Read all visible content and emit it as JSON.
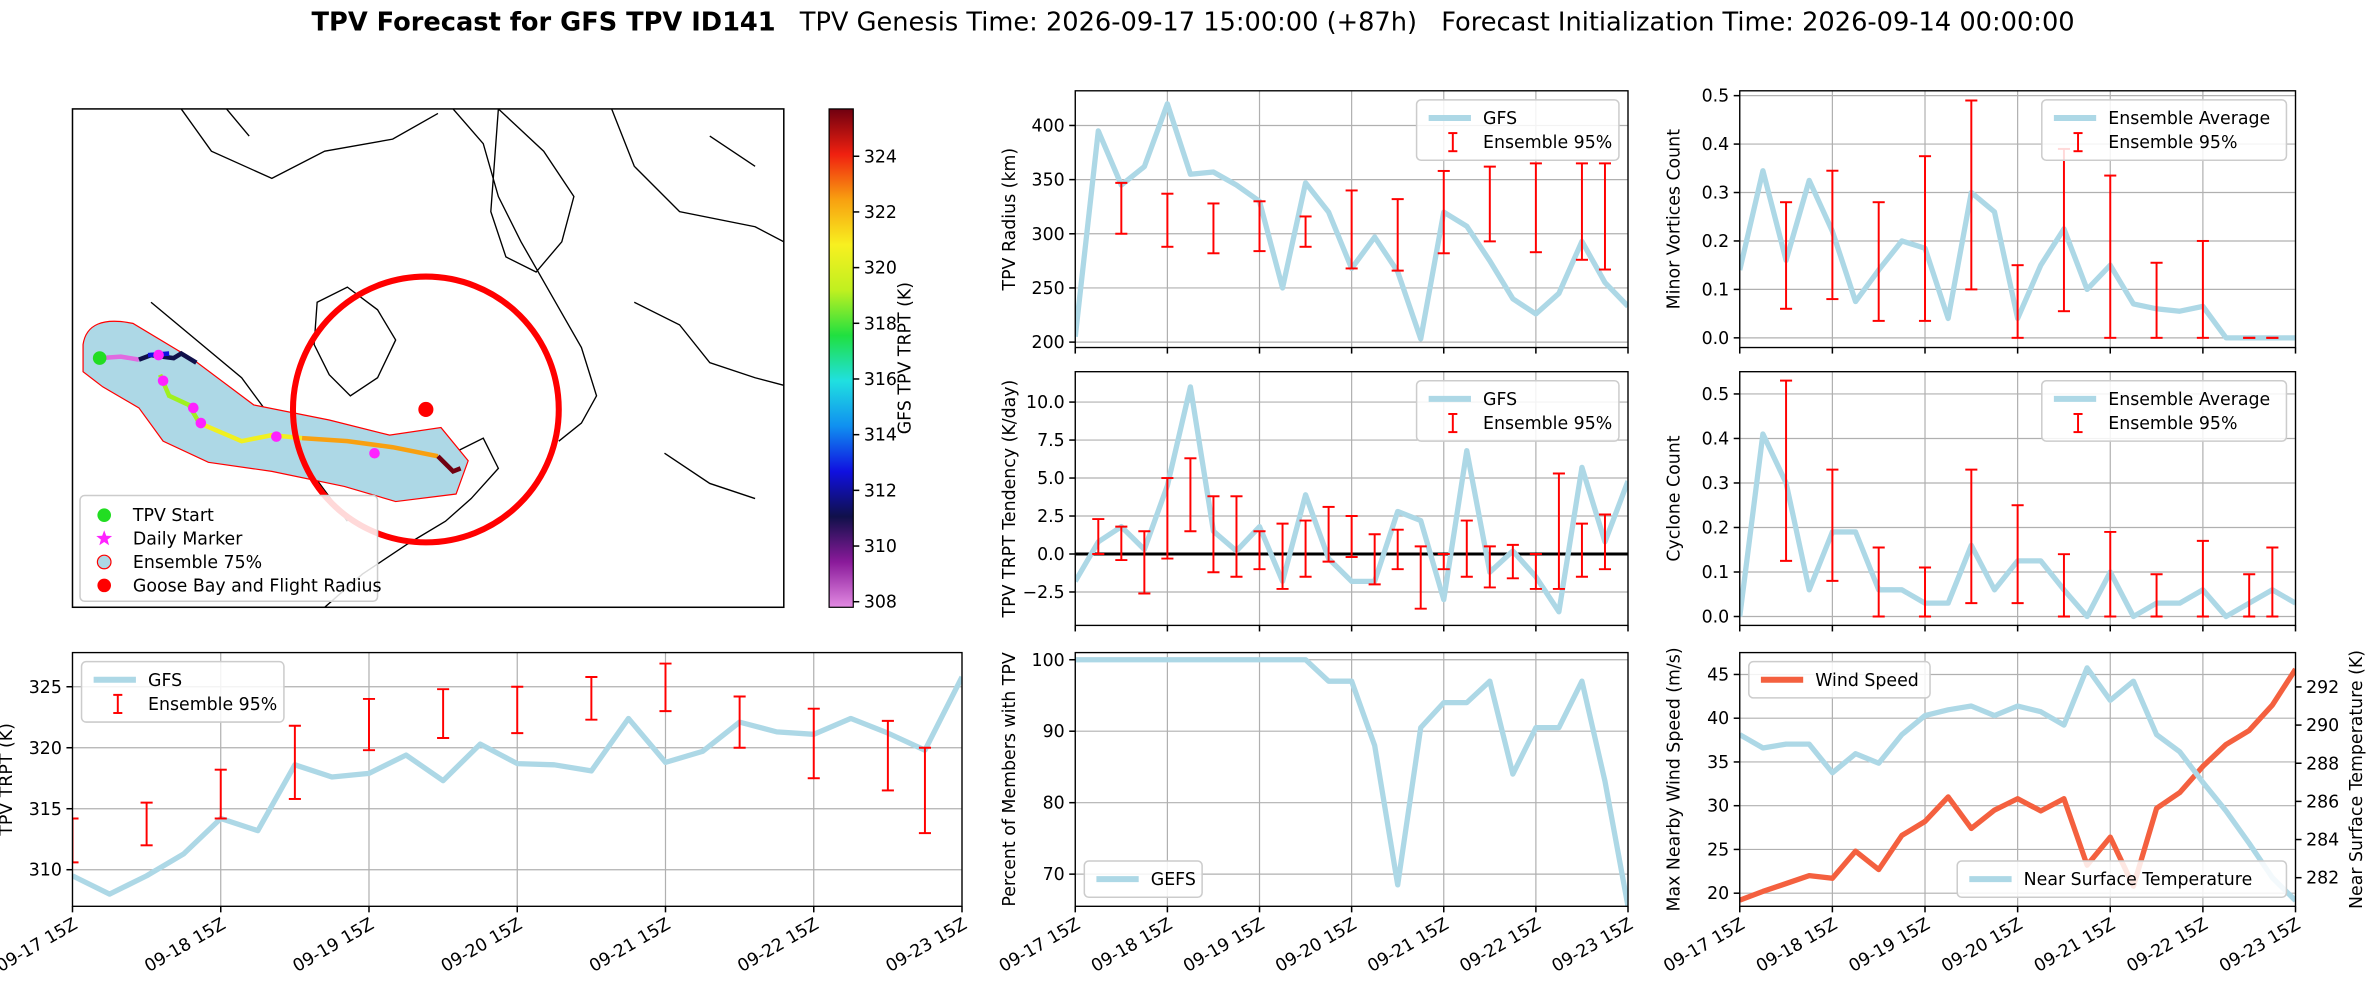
{
  "title": "TPV Forecast for GFS TPV ID141",
  "genesis": "TPV Genesis Time: 2026-09-17 15:00:00 (+87h)",
  "init": "Forecast Initialization Time: 2026-09-14 00:00:00",
  "chart_data": [
    {
      "type": "map",
      "colorbar_label": "GFS TPV TRPT (K)",
      "colorbar_lim": [
        307.8,
        325.7
      ],
      "colorbar_ticks": [
        308,
        310,
        312,
        314,
        316,
        318,
        320,
        322,
        324
      ],
      "colormap": [
        "#e28ae2",
        "#8a1a9a",
        "#10104a",
        "#1010e0",
        "#1090f0",
        "#20e0e0",
        "#20e040",
        "#c0f020",
        "#f8f020",
        "#f8a010",
        "#f02010",
        "#700010"
      ],
      "legend": [
        {
          "name": "TPV Start",
          "color": "#22dd22",
          "marker": "circle"
        },
        {
          "name": "Daily Marker",
          "color": "#ff22ff",
          "marker": "star"
        },
        {
          "name": "Ensemble 75%",
          "color": "#add8e6",
          "marker": "ring"
        },
        {
          "name": "Goose Bay and Flight Radius",
          "color": "#ff0000",
          "marker": "circle"
        }
      ]
    },
    {
      "type": "line",
      "ylabel": "TPV TRPT (K)",
      "categories": [
        "09-17 15Z",
        null,
        null,
        null,
        "09-18 15Z",
        null,
        null,
        null,
        "09-19 15Z",
        null,
        null,
        null,
        "09-20 15Z",
        null,
        null,
        null,
        "09-21 15Z",
        null,
        null,
        null,
        "09-22 15Z",
        null,
        null,
        null,
        "09-23 15Z"
      ],
      "ylim": [
        307,
        327.8
      ],
      "yticks": [
        310,
        315,
        320,
        325
      ],
      "grid": true,
      "legend": "upper left",
      "series": [
        {
          "name": "GFS",
          "color": "#add8e6",
          "values": [
            309.5,
            308,
            309.5,
            311.3,
            314.2,
            313.2,
            318.6,
            317.6,
            317.9,
            319.4,
            317.3,
            320.3,
            318.7,
            318.6,
            318.1,
            322.4,
            318.8,
            319.7,
            322.1,
            321.3,
            321.1,
            322.4,
            321.2,
            319.8,
            325.8
          ]
        },
        {
          "name": "Ensemble 95%",
          "type": "errorbar",
          "color": "#ff0000",
          "low": [
            310.6,
            null,
            312,
            null,
            314.2,
            null,
            315.8,
            null,
            319.8,
            null,
            320.8,
            null,
            321.2,
            null,
            322.3,
            null,
            323,
            null,
            320,
            null,
            317.5,
            null,
            316.5,
            313,
            null
          ],
          "high": [
            314.2,
            null,
            315.5,
            null,
            318.2,
            null,
            321.8,
            null,
            324,
            null,
            324.8,
            null,
            325,
            null,
            325.8,
            null,
            326.9,
            null,
            324.2,
            null,
            323.2,
            null,
            322.2,
            320,
            null
          ]
        }
      ]
    },
    {
      "type": "line",
      "ylabel": "TPV Radius (km)",
      "ylim": [
        195,
        432
      ],
      "yticks": [
        200,
        250,
        300,
        350,
        400
      ],
      "grid": true,
      "legend": "upper right",
      "series": [
        {
          "name": "GFS",
          "color": "#add8e6",
          "values": [
            205,
            395,
            345,
            362,
            420,
            355,
            357,
            345,
            330,
            250,
            347,
            320,
            268,
            297,
            265,
            203,
            320,
            307,
            275,
            240,
            226,
            245,
            293,
            255,
            233
          ]
        },
        {
          "name": "Ensemble 95%",
          "type": "errorbar",
          "color": "#ff0000",
          "low": [
            null,
            null,
            300,
            null,
            288,
            null,
            282,
            null,
            284,
            null,
            288,
            null,
            268,
            null,
            266,
            null,
            282,
            null,
            293,
            null,
            283,
            null,
            276,
            267,
            null
          ],
          "high": [
            null,
            null,
            347,
            null,
            337,
            null,
            328,
            null,
            330,
            null,
            316,
            null,
            340,
            null,
            332,
            null,
            358,
            null,
            362,
            null,
            365,
            null,
            365,
            365,
            null
          ]
        }
      ]
    },
    {
      "type": "line",
      "ylabel": "TPV TRPT Tendency (K/day)",
      "ylim": [
        -4.7,
        12
      ],
      "yticks": [
        {
          "value": -2.5,
          "label": "−2.5"
        },
        {
          "value": 0,
          "label": "0.0"
        },
        {
          "value": 2.5,
          "label": "2.5"
        },
        {
          "value": 5,
          "label": "5.0"
        },
        {
          "value": 7.5,
          "label": "7.5"
        },
        {
          "value": 10,
          "label": "10.0"
        }
      ],
      "grid": true,
      "legend": "upper right",
      "reference_line": 0,
      "series": [
        {
          "name": "GFS",
          "color": "#add8e6",
          "values": [
            -1.8,
            0.8,
            1.8,
            0.3,
            4.5,
            11,
            1.5,
            0.2,
            1.8,
            -1.8,
            3.9,
            -0.3,
            -1.8,
            -1.8,
            2.8,
            2.2,
            -3,
            6.8,
            -1.2,
            0.2,
            -1.5,
            -3.8,
            5.7,
            0.8,
            4.8
          ]
        },
        {
          "name": "Ensemble 95%",
          "type": "errorbar",
          "color": "#ff0000",
          "low": [
            null,
            0,
            -0.4,
            -2.6,
            -0.3,
            1.5,
            -1.2,
            -1.5,
            -1,
            -2.3,
            -1.5,
            -0.5,
            -0.2,
            -2,
            -1,
            -3.6,
            -1,
            -1.5,
            -2.2,
            -1.6,
            -2.3,
            -2.3,
            -1.5,
            -1,
            null
          ],
          "high": [
            null,
            2.3,
            1.8,
            1.5,
            5,
            6.3,
            3.8,
            3.8,
            1.5,
            2,
            2.2,
            3.1,
            2.5,
            1.3,
            1.6,
            0.5,
            0,
            2.2,
            0.5,
            0.6,
            0,
            5.3,
            2,
            2.6,
            null
          ]
        }
      ]
    },
    {
      "type": "line",
      "ylabel": "Percent of Members with TPV",
      "categories": [
        "09-17 15Z",
        null,
        null,
        null,
        "09-18 15Z",
        null,
        null,
        null,
        "09-19 15Z",
        null,
        null,
        null,
        "09-20 15Z",
        null,
        null,
        null,
        "09-21 15Z",
        null,
        null,
        null,
        "09-22 15Z",
        null,
        null,
        null,
        "09-23 15Z"
      ],
      "ylim": [
        65.5,
        101
      ],
      "yticks": [
        70,
        80,
        90,
        100
      ],
      "grid": true,
      "legend": "lower left",
      "series": [
        {
          "name": "GEFS",
          "color": "#add8e6",
          "values": [
            100,
            100,
            100,
            100,
            100,
            100,
            100,
            100,
            100,
            100,
            100,
            97,
            97,
            88,
            68.5,
            90.5,
            94,
            94,
            97,
            84,
            90.5,
            90.5,
            97,
            83,
            65.5
          ]
        }
      ]
    },
    {
      "type": "line",
      "ylabel": "Minor Vortices Count",
      "ylim": [
        -0.02,
        0.51
      ],
      "yticks": [
        {
          "value": 0,
          "label": "0.0"
        },
        {
          "value": 0.1,
          "label": "0.1"
        },
        {
          "value": 0.2,
          "label": "0.2"
        },
        {
          "value": 0.3,
          "label": "0.3"
        },
        {
          "value": 0.4,
          "label": "0.4"
        },
        {
          "value": 0.5,
          "label": "0.5"
        }
      ],
      "grid": true,
      "legend": "upper right",
      "series": [
        {
          "name": "Ensemble Average",
          "color": "#add8e6",
          "values": [
            0.14,
            0.345,
            0.16,
            0.325,
            0.22,
            0.075,
            0.14,
            0.2,
            0.185,
            0.04,
            0.3,
            0.26,
            0.04,
            0.15,
            0.225,
            0.1,
            0.15,
            0.07,
            0.06,
            0.055,
            0.065,
            0,
            0,
            0,
            0
          ]
        },
        {
          "name": "Ensemble 95%",
          "type": "errorbar",
          "color": "#ff0000",
          "low": [
            null,
            null,
            0.06,
            null,
            0.08,
            null,
            0.035,
            null,
            0.035,
            null,
            0.1,
            null,
            0,
            null,
            0.055,
            null,
            0,
            null,
            0,
            null,
            0,
            null,
            0,
            0,
            null
          ],
          "high": [
            null,
            null,
            0.28,
            null,
            0.345,
            null,
            0.28,
            null,
            0.375,
            null,
            0.49,
            null,
            0.15,
            null,
            0.39,
            null,
            0.335,
            null,
            0.155,
            null,
            0.2,
            null,
            0,
            0,
            null
          ]
        }
      ]
    },
    {
      "type": "line",
      "ylabel": "Cyclone Count",
      "ylim": [
        -0.02,
        0.55
      ],
      "yticks": [
        {
          "value": 0,
          "label": "0.0"
        },
        {
          "value": 0.1,
          "label": "0.1"
        },
        {
          "value": 0.2,
          "label": "0.2"
        },
        {
          "value": 0.3,
          "label": "0.3"
        },
        {
          "value": 0.4,
          "label": "0.4"
        },
        {
          "value": 0.5,
          "label": "0.5"
        }
      ],
      "grid": true,
      "legend": "upper right",
      "series": [
        {
          "name": "Ensemble Average",
          "color": "#add8e6",
          "values": [
            0,
            0.41,
            0.3,
            0.06,
            0.19,
            0.19,
            0.06,
            0.06,
            0.03,
            0.03,
            0.16,
            0.06,
            0.125,
            0.125,
            0.06,
            0,
            0.1,
            0,
            0.03,
            0.03,
            0.06,
            0,
            0.03,
            0.06,
            0.03
          ]
        },
        {
          "name": "Ensemble 95%",
          "type": "errorbar",
          "color": "#ff0000",
          "low": [
            null,
            null,
            0.125,
            null,
            0.08,
            null,
            0,
            null,
            0,
            null,
            0.03,
            null,
            0.03,
            null,
            0,
            null,
            0,
            null,
            0,
            null,
            0,
            null,
            0,
            0,
            null
          ],
          "high": [
            null,
            null,
            0.53,
            null,
            0.33,
            null,
            0.155,
            null,
            0.11,
            null,
            0.33,
            null,
            0.25,
            null,
            0.14,
            null,
            0.19,
            null,
            0.095,
            null,
            0.17,
            null,
            0.095,
            0.155,
            null
          ]
        }
      ]
    },
    {
      "type": "line",
      "ylabel": "Max Nearby Wind Speed (m/s)",
      "ylabel_color": "#f4603f",
      "y2label": "Near Surface Temperature (K)",
      "y2label_color": "#4169e1",
      "categories": [
        "09-17 15Z",
        null,
        null,
        null,
        "09-18 15Z",
        null,
        null,
        null,
        "09-19 15Z",
        null,
        null,
        null,
        "09-20 15Z",
        null,
        null,
        null,
        "09-21 15Z",
        null,
        null,
        null,
        "09-22 15Z",
        null,
        null,
        null,
        "09-23 15Z"
      ],
      "ylim": [
        18.5,
        47.5
      ],
      "yticks": [
        20,
        25,
        30,
        35,
        40,
        45
      ],
      "y2lim": [
        280.5,
        293.8
      ],
      "y2ticks": [
        282,
        284,
        286,
        288,
        290,
        292
      ],
      "grid": true,
      "series": [
        {
          "name": "Wind Speed",
          "color": "#f4603f",
          "legend": "upper left",
          "values": [
            19.2,
            20.2,
            21.1,
            22,
            21.7,
            24.8,
            22.7,
            26.6,
            28.2,
            31,
            27.4,
            29.5,
            30.8,
            29.4,
            30.8,
            23.2,
            26.4,
            20.8,
            29.7,
            31.5,
            34.5,
            37,
            38.6,
            41.5,
            45.6
          ]
        },
        {
          "name": "Near Surface Temperature",
          "color": "#add8e6",
          "axis": "y2",
          "legend": "lower right",
          "values": [
            289.5,
            288.8,
            289,
            289,
            287.5,
            288.5,
            288,
            289.5,
            290.5,
            290.8,
            291,
            290.5,
            291,
            290.7,
            290,
            293,
            291.3,
            292.3,
            289.5,
            288.6,
            287,
            285.5,
            283.8,
            282,
            280.8
          ]
        }
      ]
    }
  ]
}
